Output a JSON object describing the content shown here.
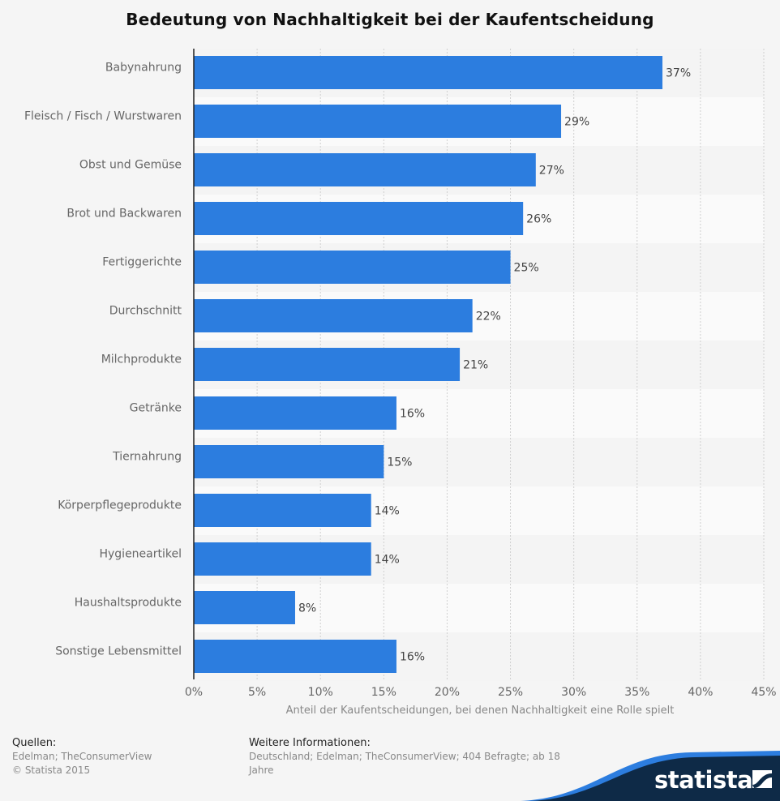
{
  "chart_data": {
    "type": "bar",
    "orientation": "horizontal",
    "title": "Bedeutung von Nachhaltigkeit bei der Kaufentscheidung",
    "xlabel": "Anteil der Kaufentscheidungen, bei denen Nachhaltigkeit eine Rolle spielt",
    "ylabel": "",
    "xlim": [
      0,
      45
    ],
    "x_ticks": [
      "0%",
      "5%",
      "10%",
      "15%",
      "20%",
      "25%",
      "30%",
      "35%",
      "40%",
      "45%"
    ],
    "x_tick_values": [
      0,
      5,
      10,
      15,
      20,
      25,
      30,
      35,
      40,
      45
    ],
    "grid": true,
    "categories": [
      "Babynahrung",
      "Fleisch / Fisch / Wurstwaren",
      "Obst und Gemüse",
      "Brot und Backwaren",
      "Fertiggerichte",
      "Durchschnitt",
      "Milchprodukte",
      "Getränke",
      "Tiernahrung",
      "Körperpflegeprodukte",
      "Hygieneartikel",
      "Haushaltsprodukte",
      "Sonstige Lebensmittel"
    ],
    "values": [
      37,
      29,
      27,
      26,
      25,
      22,
      21,
      16,
      15,
      14,
      14,
      8,
      16
    ],
    "value_labels": [
      "37%",
      "29%",
      "27%",
      "26%",
      "25%",
      "22%",
      "21%",
      "16%",
      "15%",
      "14%",
      "14%",
      "8%",
      "16%"
    ],
    "unit": "%",
    "bar_color": "#2c7ddf"
  },
  "footer": {
    "sources_heading": "Quellen:",
    "sources_line1": "Edelman; TheConsumerView",
    "sources_line2": "© Statista 2015",
    "info_heading": "Weitere Informationen:",
    "info_line1": "Deutschland; Edelman; TheConsumerView; 404 Befragte; ab 18",
    "info_line2": "Jahre"
  },
  "brand": {
    "logo_text": "statista",
    "dark_color": "#0e2a47",
    "accent_color": "#2c7ddf"
  }
}
